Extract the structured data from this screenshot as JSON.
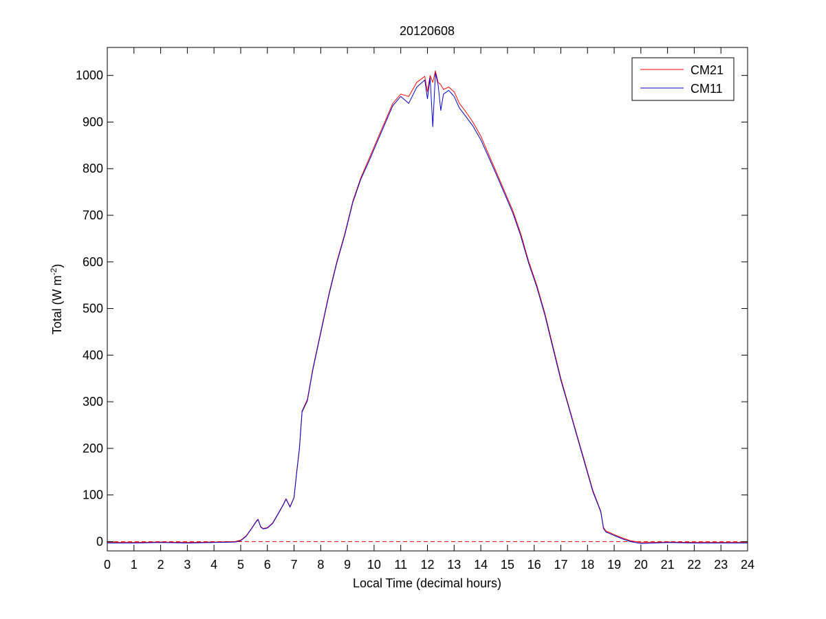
{
  "chart_data": {
    "type": "line",
    "title": "20120608",
    "xlabel": "Local Time (decimal hours)",
    "ylabel": {
      "text": "Total (W m",
      "superscript": "-2",
      "suffix": ")"
    },
    "xlim": [
      0,
      24
    ],
    "ylim": [
      -20,
      1060
    ],
    "xticks": [
      0,
      1,
      2,
      3,
      4,
      5,
      6,
      7,
      8,
      9,
      10,
      11,
      12,
      13,
      14,
      15,
      16,
      17,
      18,
      19,
      20,
      21,
      22,
      23,
      24
    ],
    "yticks": [
      0,
      100,
      200,
      300,
      400,
      500,
      600,
      700,
      800,
      900,
      1000
    ],
    "grid": false,
    "legend_position": "top-right",
    "zero_line": {
      "y": 0,
      "style": "dashed",
      "color": "#ff0000"
    },
    "series": [
      {
        "name": "CM21",
        "color": "#ff0000",
        "x": [
          0,
          1,
          2,
          3,
          4,
          4.8,
          5.0,
          5.2,
          5.4,
          5.6,
          5.65,
          5.75,
          5.85,
          6.0,
          6.2,
          6.4,
          6.6,
          6.7,
          6.85,
          7.0,
          7.1,
          7.2,
          7.3,
          7.5,
          7.7,
          8.0,
          8.3,
          8.6,
          8.9,
          9.2,
          9.5,
          9.8,
          10.1,
          10.4,
          10.7,
          11.0,
          11.3,
          11.6,
          11.9,
          12.0,
          12.1,
          12.2,
          12.3,
          12.4,
          12.5,
          12.6,
          12.8,
          13.0,
          13.2,
          13.4,
          13.7,
          14.0,
          14.3,
          14.6,
          14.9,
          15.2,
          15.5,
          15.8,
          16.1,
          16.4,
          16.7,
          17.0,
          17.3,
          17.6,
          17.9,
          18.2,
          18.4,
          18.5,
          18.6,
          18.7,
          18.8,
          19.0,
          19.3,
          19.6,
          20.0,
          20.5,
          21,
          22,
          23,
          24
        ],
        "y": [
          -2,
          -2,
          -1,
          -2,
          -1,
          0,
          3,
          12,
          28,
          45,
          48,
          32,
          28,
          30,
          40,
          60,
          80,
          92,
          75,
          95,
          150,
          200,
          280,
          305,
          370,
          450,
          530,
          600,
          660,
          730,
          780,
          820,
          860,
          900,
          940,
          960,
          955,
          985,
          998,
          965,
          1000,
          985,
          1010,
          985,
          980,
          970,
          975,
          965,
          940,
          925,
          900,
          870,
          830,
          790,
          750,
          710,
          660,
          600,
          550,
          490,
          420,
          350,
          290,
          230,
          170,
          110,
          80,
          65,
          30,
          22,
          20,
          15,
          8,
          2,
          -2,
          -2,
          -1,
          -2,
          -2,
          -2
        ]
      },
      {
        "name": "CM11",
        "color": "#0000cc",
        "x": [
          0,
          1,
          2,
          3,
          4,
          4.8,
          5.0,
          5.2,
          5.4,
          5.6,
          5.65,
          5.75,
          5.85,
          6.0,
          6.2,
          6.4,
          6.6,
          6.7,
          6.85,
          7.0,
          7.1,
          7.2,
          7.3,
          7.5,
          7.7,
          8.0,
          8.3,
          8.6,
          8.9,
          9.2,
          9.5,
          9.8,
          10.1,
          10.4,
          10.7,
          11.0,
          11.3,
          11.6,
          11.9,
          12.0,
          12.1,
          12.2,
          12.3,
          12.4,
          12.5,
          12.6,
          12.8,
          13.0,
          13.2,
          13.4,
          13.7,
          14.0,
          14.3,
          14.6,
          14.9,
          15.2,
          15.5,
          15.8,
          16.1,
          16.4,
          16.7,
          17.0,
          17.3,
          17.6,
          17.9,
          18.2,
          18.4,
          18.5,
          18.6,
          18.7,
          18.8,
          19.0,
          19.3,
          19.6,
          20.0,
          20.5,
          21,
          22,
          23,
          24
        ],
        "y": [
          -3,
          -3,
          -2,
          -3,
          -2,
          -1,
          2,
          11,
          27,
          44,
          47,
          31,
          27,
          29,
          39,
          59,
          79,
          91,
          74,
          94,
          148,
          198,
          278,
          302,
          367,
          447,
          527,
          597,
          657,
          727,
          777,
          815,
          855,
          895,
          935,
          955,
          940,
          975,
          990,
          950,
          995,
          890,
          1005,
          980,
          925,
          960,
          968,
          955,
          930,
          915,
          892,
          862,
          824,
          785,
          745,
          705,
          655,
          596,
          546,
          486,
          416,
          346,
          287,
          227,
          167,
          107,
          78,
          63,
          28,
          20,
          18,
          13,
          6,
          0,
          -4,
          -3,
          -2,
          -3,
          -3,
          -3
        ]
      }
    ]
  }
}
